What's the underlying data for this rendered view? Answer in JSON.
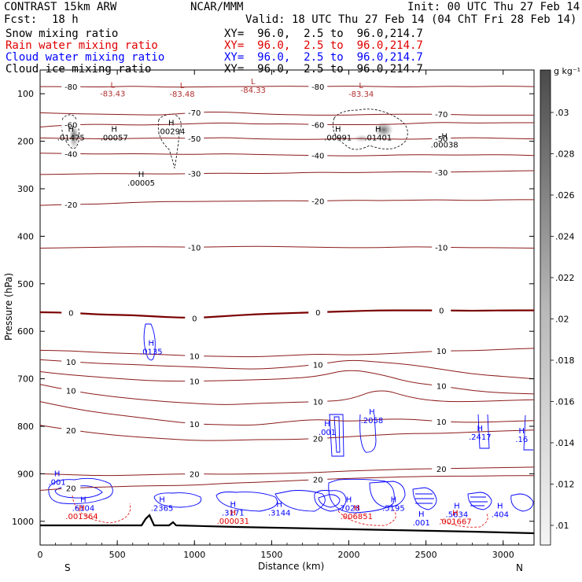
{
  "header": {
    "model": "CONTRAST 15km ARW",
    "center": "NCAR/MMM",
    "init": "Init: 00 UTC Thu 27 Feb 14",
    "fcst_label": "Fcst:",
    "fcst_value": "18 h",
    "valid": "Valid: 18 UTC Thu 27 Feb 14 (04 ChT Fri 28 Feb 14)"
  },
  "fields": [
    {
      "name": "Snow mixing ratio",
      "color": "#000000",
      "xy": "XY=  96.0,  2.5 to  96.0,214.7"
    },
    {
      "name": "Rain water mixing ratio",
      "color": "#e00000",
      "xy": "XY=  96.0,  2.5 to  96.0,214.7"
    },
    {
      "name": "Cloud water mixing ratio",
      "color": "#0000ff",
      "xy": "XY=  96.0,  2.5 to  96.0,214.7"
    },
    {
      "name": "Cloud ice mixing ratio",
      "color": "#000000",
      "xy": "XY=  96.0,  2.5 to  96.0,214.7"
    }
  ],
  "chart_data": {
    "type": "contour",
    "xlabel": "Distance (km)",
    "ylabel": "Pressure (hPa)",
    "xlim": [
      0,
      3200
    ],
    "ylim": [
      1050,
      50
    ],
    "xticks": [
      "0",
      "500",
      "1000",
      "1500",
      "2000",
      "2500",
      "3000"
    ],
    "yticks": [
      "100",
      "200",
      "300",
      "400",
      "500",
      "600",
      "700",
      "800",
      "900",
      "1000"
    ],
    "endpoints": {
      "left": "S",
      "right": "N"
    },
    "colorbar": {
      "unit": "g kg⁻¹",
      "ticks": [
        ".03",
        ".028",
        ".026",
        ".024",
        ".022",
        ".02",
        ".018",
        ".016",
        ".014",
        ".012",
        ".01"
      ]
    },
    "temperature_contours": [
      {
        "value": -80,
        "label": "-80",
        "pressure": [
          85,
          85,
          86,
          84,
          86,
          86,
          85,
          85,
          84,
          85,
          84,
          85,
          86,
          84,
          85,
          84,
          85
        ]
      },
      {
        "value": -70,
        "label": "-70",
        "pressure": [
          140,
          142,
          143,
          144,
          145,
          139,
          138,
          142,
          144,
          145,
          145,
          143,
          143,
          143,
          145,
          145,
          145
        ]
      },
      {
        "value": -60,
        "label": "-60",
        "pressure": [
          170,
          165,
          164,
          166,
          165,
          163,
          161,
          164,
          163,
          165,
          165,
          165,
          163,
          160,
          162,
          161,
          161
        ]
      },
      {
        "value": -50,
        "label": "-50",
        "pressure": [
          193,
          194,
          195,
          194,
          193,
          194,
          192,
          195,
          196,
          196,
          194,
          195,
          196,
          194,
          192,
          194,
          195
        ]
      },
      {
        "value": -40,
        "label": "-40",
        "pressure": [
          225,
          226,
          227,
          226,
          227,
          228,
          226,
          228,
          229,
          230,
          231,
          230,
          228,
          229,
          229,
          228,
          230
        ]
      },
      {
        "value": -30,
        "label": "-30",
        "pressure": [
          270,
          269,
          268,
          268,
          269,
          268,
          267,
          268,
          267,
          265,
          266,
          265,
          264,
          265,
          264,
          263,
          262
        ]
      },
      {
        "value": -20,
        "label": "-20",
        "pressure": [
          335,
          333,
          332,
          329,
          327,
          327,
          326,
          326,
          325,
          326,
          324,
          325,
          324,
          323,
          325,
          323,
          323
        ]
      },
      {
        "value": -10,
        "label": "-10",
        "pressure": [
          425,
          424,
          423,
          422,
          422,
          423,
          422,
          421,
          422,
          423,
          424,
          424,
          422,
          423,
          424,
          424,
          425
        ]
      },
      {
        "value": 0,
        "label": "0",
        "pressure": [
          560,
          561,
          565,
          566,
          570,
          572,
          568,
          564,
          562,
          560,
          558,
          556,
          556,
          556,
          557,
          556,
          556
        ]
      },
      {
        "value": 10,
        "label": "10",
        "pressure": [
          640,
          641,
          645,
          647,
          649,
          652,
          653,
          654,
          651,
          648,
          650,
          648,
          645,
          641,
          641,
          638,
          636
        ]
      },
      {
        "value": 10,
        "label": "10",
        "pressure": [
          660,
          664,
          668,
          670,
          673,
          675,
          678,
          680,
          676,
          670,
          660,
          665,
          670,
          680,
          690,
          695,
          700
        ]
      },
      {
        "value": 10,
        "label": "10",
        "pressure": [
          685,
          692,
          697,
          702,
          705,
          705,
          704,
          702,
          700,
          695,
          680,
          690,
          708,
          715,
          725,
          730,
          732
        ]
      },
      {
        "value": 10,
        "label": "10",
        "pressure": [
          712,
          725,
          735,
          742,
          748,
          752,
          755,
          752,
          750,
          748,
          745,
          720,
          740,
          748,
          748,
          746,
          744
        ]
      },
      {
        "value": 10,
        "label": "10",
        "pressure": [
          748,
          762,
          772,
          780,
          788,
          795,
          797,
          798,
          790,
          785,
          790,
          785,
          785,
          790,
          792,
          790,
          788
        ]
      },
      {
        "value": 20,
        "label": "20",
        "pressure": [
          798,
          808,
          816,
          822,
          826,
          830,
          830,
          828,
          828,
          826,
          822,
          818,
          815,
          815,
          812,
          810,
          808
        ]
      },
      {
        "value": 20,
        "label": "20",
        "pressure": [
          900,
          902,
          904,
          903,
          901,
          900,
          901,
          900,
          899,
          897,
          894,
          892,
          890,
          889,
          888,
          887,
          886
        ]
      },
      {
        "value": 20,
        "label": "20",
        "pressure": [
          935,
          930,
          928,
          926,
          925,
          924,
          920,
          918,
          915,
          912,
          910,
          908,
          906,
          905,
          905,
          904,
          904
        ]
      }
    ],
    "extrema": [
      {
        "type": "L",
        "value": "-83.43",
        "x": 470,
        "p": 92,
        "color": "#b03030"
      },
      {
        "type": "L",
        "value": "-83.48",
        "x": 920,
        "p": 93,
        "color": "#b03030"
      },
      {
        "type": "L",
        "value": "-84.33",
        "x": 1380,
        "p": 85,
        "color": "#b03030"
      },
      {
        "type": "L",
        "value": "-83.34",
        "x": 2080,
        "p": 93,
        "color": "#b03030"
      },
      {
        "type": "H",
        "value": ".01475",
        "x": 200,
        "p": 185,
        "color": "#000000"
      },
      {
        "type": "H",
        "value": ".00057",
        "x": 480,
        "p": 185,
        "color": "#000000"
      },
      {
        "type": "H",
        "value": ".00294",
        "x": 850,
        "p": 172,
        "color": "#000000"
      },
      {
        "type": "H",
        "value": ".00991",
        "x": 1930,
        "p": 185,
        "color": "#000000"
      },
      {
        "type": "H",
        "value": ".01401",
        "x": 2190,
        "p": 185,
        "color": "#000000"
      },
      {
        "type": "H",
        "value": ".00038",
        "x": 2620,
        "p": 200,
        "color": "#000000"
      },
      {
        "type": "H",
        "value": ".00005",
        "x": 655,
        "p": 280,
        "color": "#000000"
      },
      {
        "type": "H",
        "value": ".0135",
        "x": 720,
        "p": 635,
        "color": "#0000ff"
      },
      {
        "type": "H",
        "value": ".2058",
        "x": 2150,
        "p": 780,
        "color": "#0000ff"
      },
      {
        "type": "H",
        "value": ".2417",
        "x": 2850,
        "p": 815,
        "color": "#0000ff"
      },
      {
        "type": "H",
        "value": ".16",
        "x": 3120,
        "p": 820,
        "color": "#0000ff"
      },
      {
        "type": "H",
        "value": ".001",
        "x": 1860,
        "p": 805,
        "color": "#0000ff"
      },
      {
        "type": "H",
        "value": ".001",
        "x": 110,
        "p": 910,
        "color": "#0000ff"
      },
      {
        "type": "H",
        "value": ".6104",
        "x": 280,
        "p": 965,
        "color": "#0000ff"
      },
      {
        "type": "H",
        "value": ".001364",
        "x": 270,
        "p": 982,
        "color": "#e00000"
      },
      {
        "type": "H",
        "value": ".2365",
        "x": 790,
        "p": 965,
        "color": "#0000ff"
      },
      {
        "type": "H",
        "value": ".3171",
        "x": 1250,
        "p": 975,
        "color": "#0000ff"
      },
      {
        "type": "H",
        "value": ".000031",
        "x": 1250,
        "p": 992,
        "color": "#e00000"
      },
      {
        "type": "H",
        "value": ".3144",
        "x": 1550,
        "p": 975,
        "color": "#0000ff"
      },
      {
        "type": "H",
        "value": ".7028",
        "x": 2000,
        "p": 965,
        "color": "#0000ff"
      },
      {
        "type": "H",
        "value": ".006851",
        "x": 2050,
        "p": 982,
        "color": "#e00000"
      },
      {
        "type": "H",
        "value": ".5195",
        "x": 2290,
        "p": 965,
        "color": "#0000ff"
      },
      {
        "type": "H",
        "value": ".5634",
        "x": 2700,
        "p": 978,
        "color": "#0000ff"
      },
      {
        "type": "H",
        "value": ".001667",
        "x": 2690,
        "p": 993,
        "color": "#e00000"
      },
      {
        "type": "H",
        "value": ".404",
        "x": 2980,
        "p": 978,
        "color": "#0000ff"
      },
      {
        "type": "H",
        "value": ".001",
        "x": 2470,
        "p": 995,
        "color": "#0000ff"
      }
    ]
  }
}
